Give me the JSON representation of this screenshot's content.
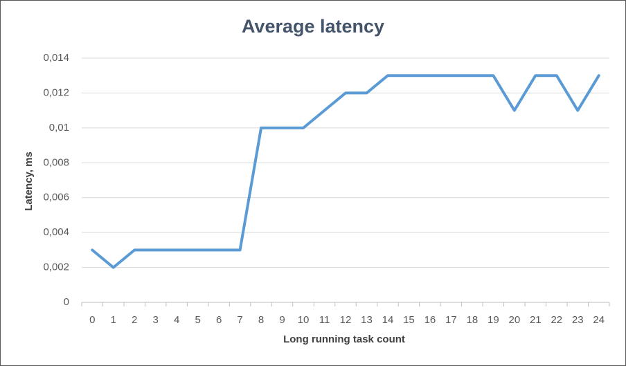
{
  "chart_data": {
    "type": "line",
    "title": "Average latency",
    "x_label": "Long running task count",
    "y_label": "Latency, ms",
    "categories": [
      "0",
      "1",
      "2",
      "3",
      "4",
      "5",
      "6",
      "7",
      "8",
      "9",
      "10",
      "11",
      "12",
      "13",
      "14",
      "15",
      "16",
      "17",
      "18",
      "19",
      "20",
      "21",
      "22",
      "23",
      "24"
    ],
    "series": [
      {
        "name": "Average latency",
        "color": "#5b9bd5",
        "values": [
          0.003,
          0.002,
          0.003,
          0.003,
          0.003,
          0.003,
          0.003,
          0.003,
          0.01,
          0.01,
          0.01,
          0.011,
          0.012,
          0.012,
          0.013,
          0.013,
          0.013,
          0.013,
          0.013,
          0.013,
          0.011,
          0.013,
          0.013,
          0.011,
          0.013
        ]
      }
    ],
    "ylim": [
      0,
      0.014
    ],
    "yticks": [
      0,
      {
        "value": 0.002,
        "label": "0,002"
      },
      {
        "value": 0.004,
        "label": "0,004"
      },
      {
        "value": 0.006,
        "label": "0,006"
      },
      {
        "value": 0.008,
        "label": "0,008"
      },
      {
        "value": 0.01,
        "label": "0,01"
      },
      {
        "value": 0.012,
        "label": "0,012"
      },
      {
        "value": 0.014,
        "label": "0,014"
      }
    ],
    "grid": true
  }
}
